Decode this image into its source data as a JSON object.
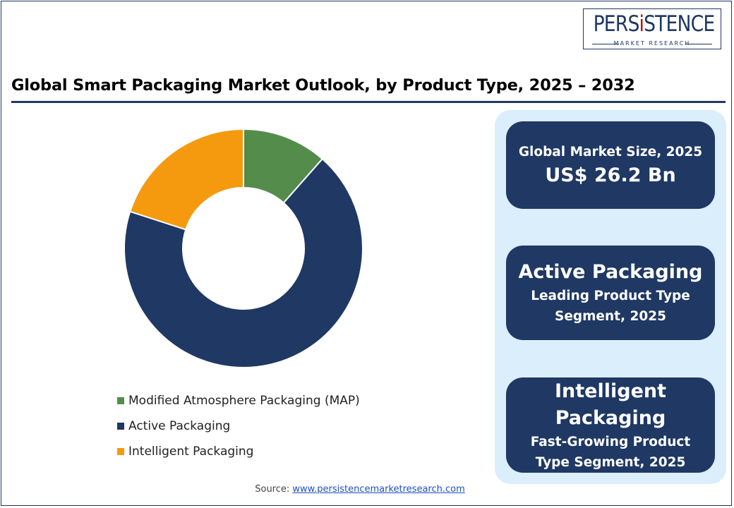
{
  "logo": {
    "word_pre": "PERS",
    "word_i": "i",
    "word_post": "STENCE",
    "sub": "MARKET RESEARCH"
  },
  "title": "Global Smart Packaging Market Outlook, by Product Type, 2025 – 2032",
  "colors": {
    "navy": "#1f3864",
    "green": "#548c4c",
    "orange": "#f59a0f",
    "panel": "#dbeefb"
  },
  "chart_data": {
    "type": "pie",
    "title": "Global Smart Packaging Market Outlook, by Product Type, 2025 – 2032",
    "donut": true,
    "categories": [
      "Modified Atmosphere Packaging (MAP)",
      "Active Packaging",
      "Intelligent Packaging"
    ],
    "values": [
      11.5,
      68.5,
      20.0
    ],
    "colors": [
      "#548c4c",
      "#1f3864",
      "#f59a0f"
    ],
    "legend_position": "bottom"
  },
  "legend": [
    {
      "label": "Modified Atmosphere Packaging (MAP)",
      "color": "#548c4c"
    },
    {
      "label": "Active Packaging",
      "color": "#1f3864"
    },
    {
      "label": "Intelligent Packaging",
      "color": "#f59a0f"
    }
  ],
  "cards": {
    "market_size": {
      "line1": "Global Market Size, 2025",
      "line2": "US$ 26.2 Bn"
    },
    "leading": {
      "line1": "Active Packaging",
      "line2": "Leading Product Type",
      "line3": "Segment, 2025"
    },
    "fast": {
      "line1a": "Intelligent",
      "line1b": "Packaging",
      "line2": "Fast-Growing Product",
      "line3": "Type Segment, 2025"
    }
  },
  "source": {
    "label": "Source: ",
    "link": "www.persistencemarketresearch.com"
  }
}
